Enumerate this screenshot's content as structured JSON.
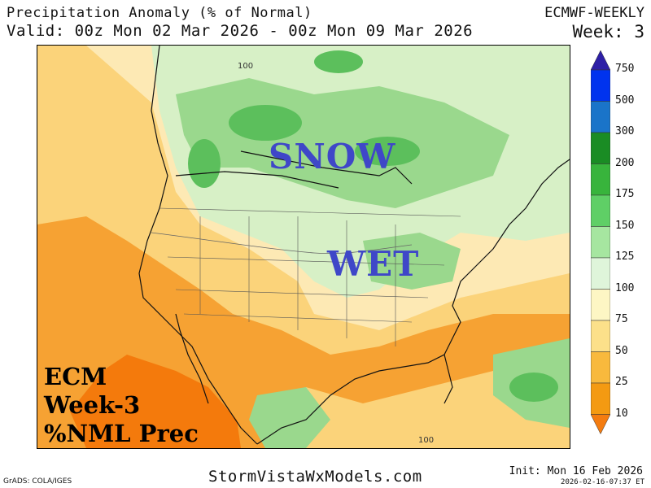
{
  "header": {
    "title": "Precipitation Anomaly (% of Normal)",
    "valid": "Valid: 00z Mon 02 Mar 2026 - 00z Mon 09 Mar 2026",
    "model": "ECMWF-WEEKLY",
    "week": "Week: 3"
  },
  "map": {
    "overlay_snow": "SNOW",
    "overlay_wet": "WET",
    "caption_line1": "ECM",
    "caption_line2": "Week-3",
    "caption_line3": "%NML Prec",
    "contour_labels": [
      "100",
      "100"
    ],
    "colors": {
      "overlay_text": "#3f47c8",
      "dry_dark": "#f47a0c",
      "dry_mid": "#f6a233",
      "dry_light": "#fbd37a",
      "near_normal": "#fde9b4",
      "wet_light": "#d7f0c6",
      "wet_mid": "#9ad88d",
      "wet_dark": "#5cbf5c"
    }
  },
  "legend": {
    "labels": [
      "750",
      "500",
      "300",
      "200",
      "175",
      "150",
      "125",
      "100",
      "75",
      "50",
      "25",
      "10"
    ],
    "colors": [
      "#2d1fa6",
      "#0033ee",
      "#1a74c9",
      "#1a8c24",
      "#38b43c",
      "#5fcf66",
      "#a6e6a0",
      "#dff5da",
      "#fdf6c4",
      "#fce08a",
      "#f8b93d",
      "#f49a12",
      "#f47c10"
    ]
  },
  "footer": {
    "grads": "GrADS: COLA/IGES",
    "site": "StormVistaWxModels.com",
    "init": "Init: Mon 16 Feb 2026",
    "stamp": "2026-02-16-07:37 ET"
  }
}
